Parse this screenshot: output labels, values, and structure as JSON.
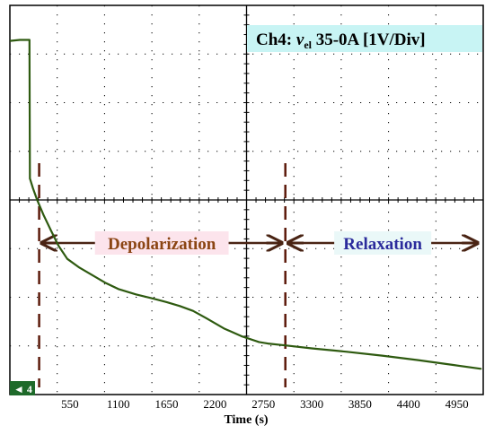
{
  "chart_data": {
    "type": "line",
    "title_parts": {
      "prefix": "Ch4: ",
      "variable": "v",
      "subscript": "el",
      "suffix": " 35-0A [1V/Div]"
    },
    "xlabel": "Time (s)",
    "ylabel": "",
    "xlim": [
      0,
      5225
    ],
    "x_ticks": [
      550,
      1100,
      1650,
      2200,
      2750,
      3300,
      3850,
      4400,
      4950
    ],
    "y_unit_per_div": 1,
    "channel_marker": "4",
    "grid": true,
    "series": [
      {
        "name": "",
        "color": "#2e5a10",
        "points": [
          [
            -150,
            7.03
          ],
          [
            -20,
            7.05
          ],
          [
            90,
            7.05
          ],
          [
            95,
            4.2
          ],
          [
            130,
            4.0
          ],
          [
            180,
            3.75
          ],
          [
            250,
            3.45
          ],
          [
            330,
            3.15
          ],
          [
            420,
            2.82
          ],
          [
            520,
            2.55
          ],
          [
            650,
            2.38
          ],
          [
            800,
            2.22
          ],
          [
            950,
            2.06
          ],
          [
            1100,
            1.93
          ],
          [
            1300,
            1.82
          ],
          [
            1500,
            1.73
          ],
          [
            1650,
            1.66
          ],
          [
            1800,
            1.58
          ],
          [
            1950,
            1.48
          ],
          [
            2100,
            1.33
          ],
          [
            2300,
            1.12
          ],
          [
            2500,
            0.96
          ],
          [
            2700,
            0.84
          ],
          [
            2800,
            0.81
          ],
          [
            3000,
            0.77
          ],
          [
            3300,
            0.71
          ],
          [
            3700,
            0.64
          ],
          [
            4100,
            0.56
          ],
          [
            4500,
            0.47
          ],
          [
            4900,
            0.37
          ],
          [
            5225,
            0.29
          ]
        ]
      }
    ],
    "dashed_markers_x": [
      200,
      3000
    ],
    "annotations": [
      {
        "text": "Depolarization",
        "x_from": 200,
        "x_to": 3000,
        "color": "#8b4513"
      },
      {
        "text": "Relaxation",
        "x_from": 3000,
        "x_to": 5225,
        "color": "#2b2b9c"
      }
    ],
    "colors": {
      "background": "#ffffff",
      "grid": "#000000",
      "trace": "#2e5a10",
      "marker_line": "#5c1a0b",
      "arrow": "#4a2414",
      "title_bg": "#c8f4f4",
      "depolarization_bg": "#fce4ec",
      "relaxation_bg": "#eaf8f8",
      "channel_badge": "#1e6a2a"
    }
  }
}
